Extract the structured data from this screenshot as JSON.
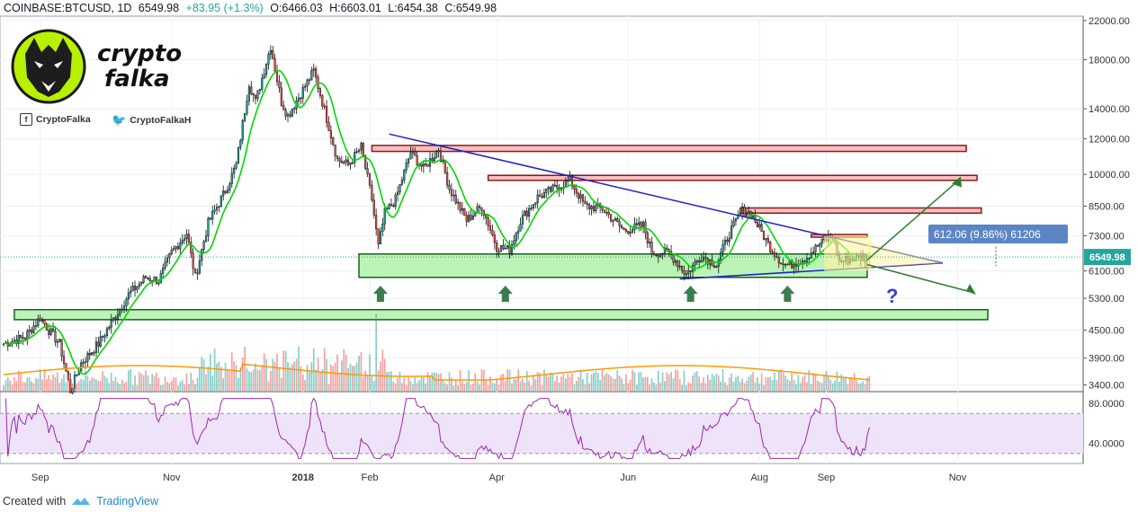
{
  "header": {
    "symbol": "COINBASE:BTCUSD, 1D",
    "last": "6549.98",
    "change": "+83.95 (+1.3%)",
    "open": "O:6466.03",
    "high": "H:6603.01",
    "low": "L:6454.38",
    "close": "C:6549.98"
  },
  "branding": {
    "logo_line1": "crypto",
    "logo_line2": "falka",
    "facebook": "CryptoFalka",
    "twitter": "CryptoFalkaH"
  },
  "annotations": {
    "measure_label": "612.06 (9.86%) 61206",
    "price_tag": "6549.98",
    "question_mark": "?"
  },
  "footer": {
    "created_with": "Created with",
    "brand": "TradingView"
  },
  "colors": {
    "up": "#26a69a",
    "down": "#ef5350",
    "ma": "#00d800",
    "trendline": "#2020c8",
    "support_fill": "#a6f0a0",
    "resistance_fill": "#f8b4b4",
    "rsi": "#9c27b0",
    "rsi_band": "#efe3fa",
    "volume_ma": "#ff9800",
    "arrow": "#2e7d32"
  },
  "chart_data": [
    {
      "type": "candlestick",
      "title": "",
      "x_start": "2017-08-15",
      "x_end": "2018-09-21",
      "x_ticks": [
        "Sep",
        "Nov",
        "2018",
        "Feb",
        "Apr",
        "Jun",
        "Aug",
        "Sep",
        "Nov"
      ],
      "y_ticks": [
        "22000.00",
        "18000.00",
        "14000.00",
        "12000.00",
        "10000.00",
        "8500.00",
        "7300.00",
        "6100.00",
        "5300.00",
        "4500.00",
        "3900.00",
        "3400.00"
      ],
      "scale": "log",
      "ylim": [
        3300,
        22500
      ],
      "price_path": [
        [
          "2017-08-15",
          4200
        ],
        [
          "2017-08-25",
          4350
        ],
        [
          "2017-09-01",
          4800
        ],
        [
          "2017-09-05",
          4500
        ],
        [
          "2017-09-10",
          4200
        ],
        [
          "2017-09-15",
          3300
        ],
        [
          "2017-09-20",
          3800
        ],
        [
          "2017-09-28",
          4200
        ],
        [
          "2017-10-12",
          5400
        ],
        [
          "2017-10-20",
          5900
        ],
        [
          "2017-10-26",
          5800
        ],
        [
          "2017-11-01",
          6700
        ],
        [
          "2017-11-08",
          7400
        ],
        [
          "2017-11-12",
          5900
        ],
        [
          "2017-11-18",
          7800
        ],
        [
          "2017-11-26",
          9200
        ],
        [
          "2017-12-01",
          10500
        ],
        [
          "2017-12-07",
          16000
        ],
        [
          "2017-12-10",
          14500
        ],
        [
          "2017-12-17",
          19300
        ],
        [
          "2017-12-22",
          14500
        ],
        [
          "2017-12-25",
          13500
        ],
        [
          "2018-01-06",
          17000
        ],
        [
          "2018-01-10",
          14500
        ],
        [
          "2018-01-17",
          10800
        ],
        [
          "2018-01-22",
          10500
        ],
        [
          "2018-01-28",
          11500
        ],
        [
          "2018-02-02",
          8800
        ],
        [
          "2018-02-05",
          6900
        ],
        [
          "2018-02-08",
          8200
        ],
        [
          "2018-02-13",
          8800
        ],
        [
          "2018-02-20",
          11200
        ],
        [
          "2018-02-26",
          10300
        ],
        [
          "2018-03-05",
          11400
        ],
        [
          "2018-03-10",
          9300
        ],
        [
          "2018-03-18",
          7900
        ],
        [
          "2018-03-25",
          8500
        ],
        [
          "2018-04-01",
          6900
        ],
        [
          "2018-04-07",
          6800
        ],
        [
          "2018-04-12",
          7900
        ],
        [
          "2018-04-20",
          8900
        ],
        [
          "2018-05-05",
          9700
        ],
        [
          "2018-05-12",
          8500
        ],
        [
          "2018-05-20",
          8400
        ],
        [
          "2018-05-30",
          7500
        ],
        [
          "2018-06-08",
          7700
        ],
        [
          "2018-06-12",
          6700
        ],
        [
          "2018-06-20",
          6700
        ],
        [
          "2018-06-28",
          6000
        ],
        [
          "2018-07-05",
          6600
        ],
        [
          "2018-07-12",
          6300
        ],
        [
          "2018-07-18",
          7400
        ],
        [
          "2018-07-24",
          8300
        ],
        [
          "2018-07-28",
          8200
        ],
        [
          "2018-08-05",
          7000
        ],
        [
          "2018-08-12",
          6300
        ],
        [
          "2018-08-15",
          6300
        ],
        [
          "2018-08-22",
          6500
        ],
        [
          "2018-08-29",
          7000
        ],
        [
          "2018-09-04",
          7300
        ],
        [
          "2018-09-07",
          6400
        ],
        [
          "2018-09-13",
          6500
        ],
        [
          "2018-09-21",
          6550
        ]
      ],
      "support_zones": [
        [
          5900,
          6650
        ],
        [
          4750,
          5000
        ]
      ],
      "resistance_zones": [
        [
          11250,
          11600
        ],
        [
          9700,
          9950
        ],
        [
          8200,
          8420
        ],
        [
          7250,
          7350
        ]
      ],
      "current_price": 6549.98
    },
    {
      "type": "bar",
      "title": "Volume",
      "series": "volume with moving average"
    },
    {
      "type": "line",
      "title": "RSI",
      "y_ticks": [
        "80.0000",
        "40.0000"
      ],
      "ylim": [
        20,
        90
      ],
      "band": [
        30,
        70
      ]
    }
  ]
}
